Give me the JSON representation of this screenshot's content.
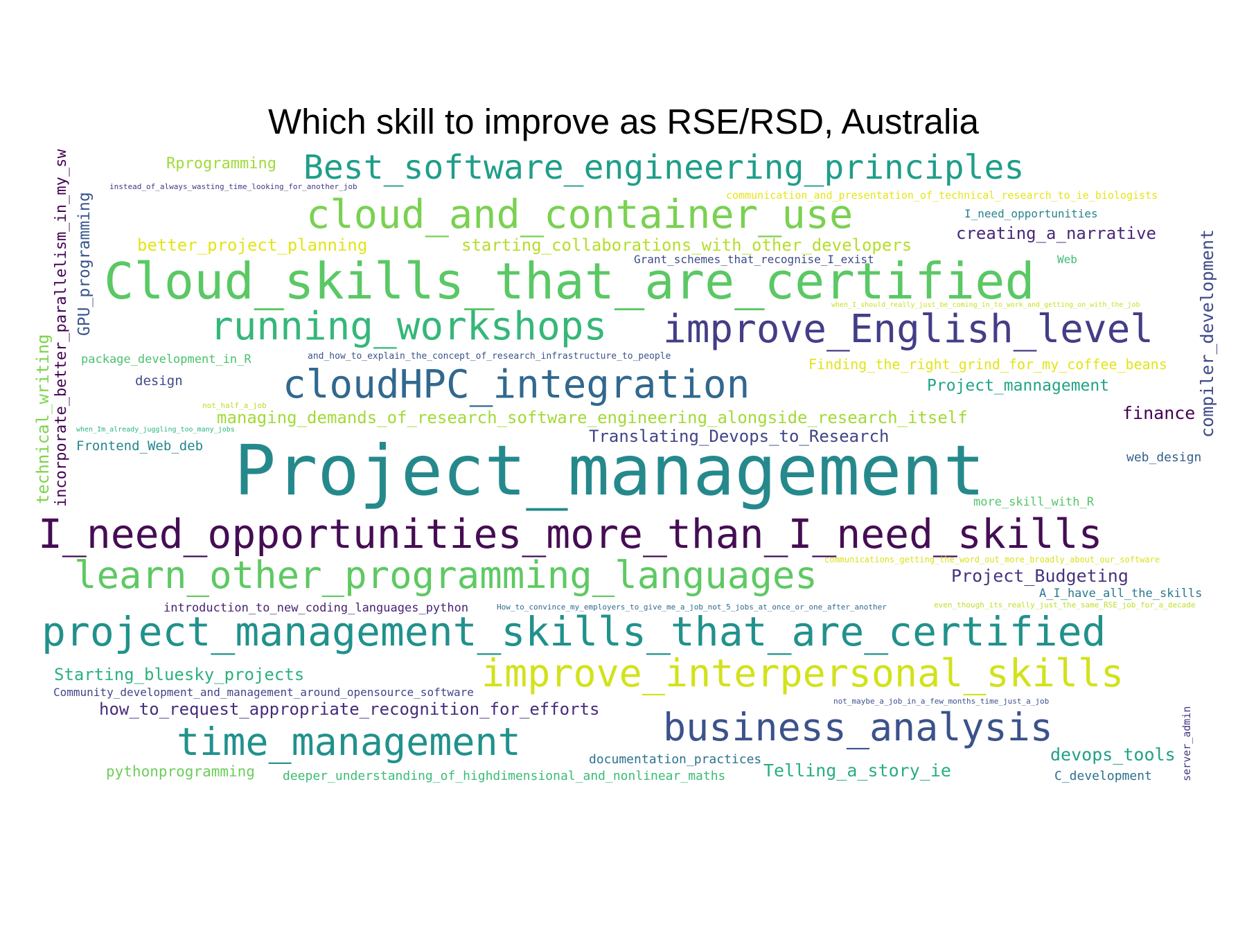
{
  "title": "Which skill to improve as RSE/RSD, Australia",
  "words": [
    {
      "text": "Project_management",
      "color": "#25898c"
    },
    {
      "text": "Cloud_skills_that_are_certified",
      "color": "#5ac864"
    },
    {
      "text": "I_need_opportunities_more_than_I_need_skills",
      "color": "#450d54"
    },
    {
      "text": "project_management_skills_that_are_certified",
      "color": "#21918c"
    },
    {
      "text": "cloud_and_container_use",
      "color": "#7ad151"
    },
    {
      "text": "improve_English_level",
      "color": "#433e85"
    },
    {
      "text": "running_workshops",
      "color": "#35b779"
    },
    {
      "text": "learn_other_programming_languages",
      "color": "#5ec962"
    },
    {
      "text": "improve_interpersonal_skills",
      "color": "#d2e21b"
    },
    {
      "text": "cloudHPC_integration",
      "color": "#31688e"
    },
    {
      "text": "time_management",
      "color": "#21918c"
    },
    {
      "text": "business_analysis",
      "color": "#3b528b"
    },
    {
      "text": "Best_software_engineering_principles",
      "color": "#1f9e89"
    },
    {
      "text": "Rprogramming",
      "color": "#a0da39"
    },
    {
      "text": "better_project_planning",
      "color": "#e3e418"
    },
    {
      "text": "starting_collaborations_with_other_developers",
      "color": "#b5de2b"
    },
    {
      "text": "creating_a_narrative",
      "color": "#482878"
    },
    {
      "text": "Grant_schemes_that_recognise_I_exist",
      "color": "#3e4a89"
    },
    {
      "text": "Web",
      "color": "#3dbc74"
    },
    {
      "text": "communication_and_presentation_of_technical_research_to_ie_biologists",
      "color": "#e5e419"
    },
    {
      "text": "I_need_opportunities",
      "color": "#26828e"
    },
    {
      "text": "instead_of_always_wasting_time_looking_for_another_job",
      "color": "#443983"
    },
    {
      "text": "when_I_should_really_just_be_coming_in_to_work_and_getting_on_with_the_job",
      "color": "#c8e020"
    },
    {
      "text": "package_development_in_R",
      "color": "#4ac16d"
    },
    {
      "text": "and_how_to_explain_the_concept_of_research_infrastructure_to_people",
      "color": "#3b528b"
    },
    {
      "text": "design",
      "color": "#3e4989"
    },
    {
      "text": "Finding_the_right_grind_for_my_coffee_beans",
      "color": "#e2e418"
    },
    {
      "text": "Project_mannagement",
      "color": "#20a386"
    },
    {
      "text": "not_half_a_job",
      "color": "#b8de29"
    },
    {
      "text": "managing_demands_of_research_software_engineering_alongside_research_itself",
      "color": "#a2da37"
    },
    {
      "text": "finance",
      "color": "#440154"
    },
    {
      "text": "when_Im_already_juggling_too_many_jobs",
      "color": "#2eb37c"
    },
    {
      "text": "Frontend_Web_deb",
      "color": "#24868e"
    },
    {
      "text": "Translating_Devops_to_Research",
      "color": "#414487"
    },
    {
      "text": "web_design",
      "color": "#355f8d"
    },
    {
      "text": "more_skill_with_R",
      "color": "#52c569"
    },
    {
      "text": "communications_getting_the_word_out_more_broadly_about_our_software",
      "color": "#d8e219"
    },
    {
      "text": "Project_Budgeting",
      "color": "#46337e"
    },
    {
      "text": "A_I_have_all_the_skills",
      "color": "#2a788e"
    },
    {
      "text": "introduction_to_new_coding_languages_python",
      "color": "#482173"
    },
    {
      "text": "How_to_convince_my_employers_to_give_me_a_job_not_5_jobs_at_once_or_one_after_another",
      "color": "#31688e"
    },
    {
      "text": "even_though_its_really_just_the_same_RSE_job_for_a_decade",
      "color": "#bddf26"
    },
    {
      "text": "Starting_bluesky_projects",
      "color": "#2cb17e"
    },
    {
      "text": "Community_development_and_management_around_opensource_software",
      "color": "#404588"
    },
    {
      "text": "how_to_request_appropriate_recognition_for_efforts",
      "color": "#472c7a"
    },
    {
      "text": "not_maybe_a_job_in_a_few_months_time_just_a_job",
      "color": "#3b528b"
    },
    {
      "text": "documentation_practices",
      "color": "#2c728e"
    },
    {
      "text": "devops_tools",
      "color": "#1fa187"
    },
    {
      "text": "pythonprogramming",
      "color": "#6ccd5a"
    },
    {
      "text": "deeper_understanding_of_highdimensional_and_nonlinear_maths",
      "color": "#3bbb75"
    },
    {
      "text": "Telling_a_story_ie",
      "color": "#28ae80"
    },
    {
      "text": "C_development",
      "color": "#2d708e"
    },
    {
      "text": "incorporate_better_parallelism_in_my_sw",
      "color": "#440154"
    },
    {
      "text": "GPU_programming",
      "color": "#39568c"
    },
    {
      "text": "technical_writing",
      "color": "#7fd34e"
    },
    {
      "text": "compiler_development",
      "color": "#3e4a89"
    },
    {
      "text": "server_admin",
      "color": "#453781"
    }
  ]
}
